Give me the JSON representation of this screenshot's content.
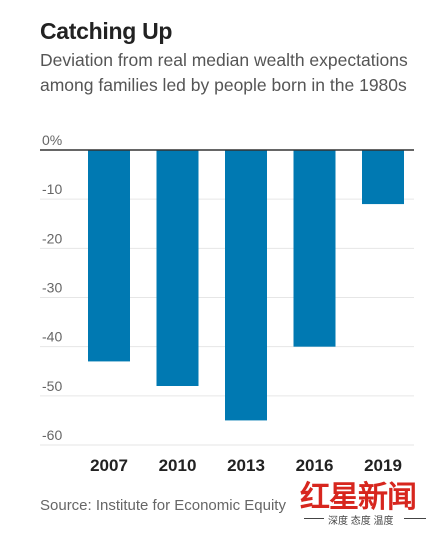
{
  "chart_data": {
    "type": "bar",
    "title": "Catching Up",
    "subtitle": "Deviation from real median wealth expectations among families led by people born in the 1980s",
    "categories": [
      "2007",
      "2010",
      "2013",
      "2016",
      "2019"
    ],
    "values": [
      -43,
      -48,
      -55,
      -40,
      -11
    ],
    "ylim": [
      -60,
      0
    ],
    "yticks": [
      0,
      -10,
      -20,
      -30,
      -40,
      -50,
      -60
    ],
    "ytick_labels": [
      "0%",
      "-10",
      "-20",
      "-30",
      "-40",
      "-50",
      "-60"
    ],
    "xlabel": "",
    "ylabel": "",
    "grid": true,
    "bar_color": "#0079b2",
    "source": "Source: Institute for Economic Equity"
  },
  "watermark": {
    "logo": "红星新闻",
    "slogan": "深度 态度 温度"
  }
}
